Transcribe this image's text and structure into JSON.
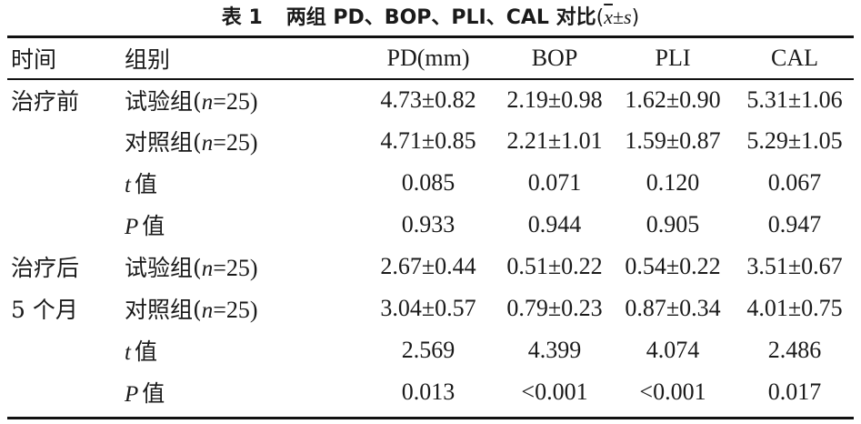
{
  "caption": {
    "label": "表 1",
    "title": "两组 PD、BOP、PLI、CAL 对比",
    "open_paren": "(",
    "xbar": "x",
    "plusminus": "±",
    "s": "s",
    "close_paren": ")"
  },
  "header": {
    "time": "时间",
    "group": "组别",
    "pd": "PD(mm)",
    "bop": "BOP",
    "pli": "PLI",
    "cal": "CAL"
  },
  "sections": [
    {
      "time_line": "治疗前",
      "rows": [
        {
          "kind": "group",
          "name": "试验组(",
          "n_var": "n",
          "n_value": "=25)",
          "pd": "4.73±0.82",
          "bop": "2.19±0.98",
          "pli": "1.62±0.90",
          "cal": "5.31±1.06"
        },
        {
          "kind": "group",
          "name": "对照组(",
          "n_var": "n",
          "n_value": "=25)",
          "pd": "4.71±0.85",
          "bop": "2.21±1.01",
          "pli": "1.59±0.87",
          "cal": "5.29±1.05"
        },
        {
          "kind": "stat",
          "var": "t",
          "suffix": "值",
          "pd": "0.085",
          "bop": "0.071",
          "pli": "0.120",
          "cal": "0.067"
        },
        {
          "kind": "stat",
          "var": "P",
          "suffix": "值",
          "pd": "0.933",
          "bop": "0.944",
          "pli": "0.905",
          "cal": "0.947"
        }
      ]
    },
    {
      "time_line": "治疗后",
      "time_line2": "5 个月",
      "rows": [
        {
          "kind": "group",
          "name": "试验组(",
          "n_var": "n",
          "n_value": "=25)",
          "pd": "2.67±0.44",
          "bop": "0.51±0.22",
          "pli": "0.54±0.22",
          "cal": "3.51±0.67"
        },
        {
          "kind": "group",
          "name": "对照组(",
          "n_var": "n",
          "n_value": "=25)",
          "pd": "3.04±0.57",
          "bop": "0.79±0.23",
          "pli": "0.87±0.34",
          "cal": "4.01±0.75"
        },
        {
          "kind": "stat",
          "var": "t",
          "suffix": "值",
          "pd": "2.569",
          "bop": "4.399",
          "pli": "4.074",
          "cal": "2.486"
        },
        {
          "kind": "stat",
          "var": "P",
          "suffix": "值",
          "pd": "0.013",
          "bop": "<0.001",
          "pli": "<0.001",
          "cal": "0.017"
        }
      ]
    }
  ]
}
